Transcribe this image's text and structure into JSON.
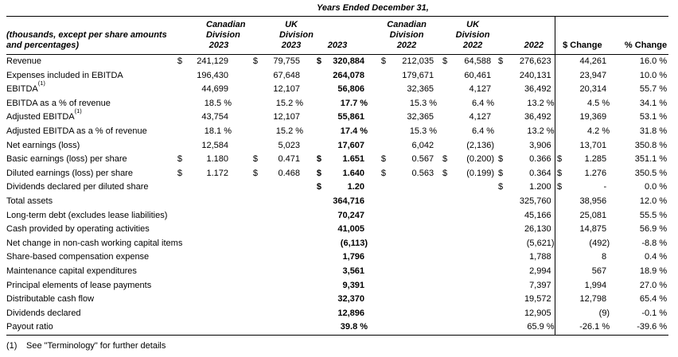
{
  "title": "Years Ended December 31,",
  "table": {
    "left_header": "(thousands, except per share amounts\nand percentages)",
    "columns": [
      "Canadian\nDivision\n2023",
      "UK\nDivision\n2023",
      "2023",
      "Canadian\nDivision\n2022",
      "UK\nDivision\n2022",
      "2022",
      "$ Change",
      "% Change"
    ],
    "rows": [
      {
        "label": "Revenue",
        "cells": [
          "$",
          "241,129",
          "$",
          "79,755",
          "$",
          "320,884",
          "$",
          "212,035",
          "$",
          "64,588",
          "$",
          "276,623",
          "",
          "44,261",
          "16.0 %"
        ]
      },
      {
        "label": "Expenses included in EBITDA",
        "cells": [
          "",
          "196,430",
          "",
          "67,648",
          "",
          "264,078",
          "",
          "179,671",
          "",
          "60,461",
          "",
          "240,131",
          "",
          "23,947",
          "10.0 %"
        ]
      },
      {
        "label": "EBITDA",
        "sup": "(1)",
        "cells": [
          "",
          "44,699",
          "",
          "12,107",
          "",
          "56,806",
          "",
          "32,365",
          "",
          "4,127",
          "",
          "36,492",
          "",
          "20,314",
          "55.7 %"
        ]
      },
      {
        "label": "EBITDA as a % of revenue",
        "cells": [
          "",
          "18.5 %",
          "",
          "15.2 %",
          "",
          "17.7 %",
          "",
          "15.3 %",
          "",
          "6.4 %",
          "",
          "13.2 %",
          "",
          "4.5 %",
          "34.1 %"
        ]
      },
      {
        "label": "Adjusted EBITDA",
        "sup": "(1)",
        "cells": [
          "",
          "43,754",
          "",
          "12,107",
          "",
          "55,861",
          "",
          "32,365",
          "",
          "4,127",
          "",
          "36,492",
          "",
          "19,369",
          "53.1 %"
        ]
      },
      {
        "label": "Adjusted EBITDA as a % of revenue",
        "cells": [
          "",
          "18.1 %",
          "",
          "15.2 %",
          "",
          "17.4 %",
          "",
          "15.3 %",
          "",
          "6.4 %",
          "",
          "13.2 %",
          "",
          "4.2 %",
          "31.8 %"
        ]
      },
      {
        "label": "Net earnings (loss)",
        "cells": [
          "",
          "12,584",
          "",
          "5,023",
          "",
          "17,607",
          "",
          "6,042",
          "",
          "(2,136)",
          "",
          "3,906",
          "",
          "13,701",
          "350.8 %"
        ]
      },
      {
        "label": "Basic earnings (loss) per share",
        "cells": [
          "$",
          "1.180",
          "$",
          "0.471",
          "$",
          "1.651",
          "$",
          "0.567",
          "$",
          "(0.200)",
          "$",
          "0.366",
          "$",
          "1.285",
          "351.1 %"
        ]
      },
      {
        "label": "Diluted earnings (loss) per share",
        "cells": [
          "$",
          "1.172",
          "$",
          "0.468",
          "$",
          "1.640",
          "$",
          "0.563",
          "$",
          "(0.199)",
          "$",
          "0.364",
          "$",
          "1.276",
          "350.5 %"
        ]
      },
      {
        "label": "Dividends declared per diluted share",
        "cells": [
          "",
          "",
          "",
          "",
          "$",
          "1.20",
          "",
          "",
          "",
          "",
          "$",
          "1.200",
          "$",
          "-",
          "0.0 %"
        ]
      },
      {
        "label": "Total assets",
        "cells": [
          "",
          "",
          "",
          "",
          "",
          "364,716",
          "",
          "",
          "",
          "",
          "",
          "325,760",
          "",
          "38,956",
          "12.0 %"
        ]
      },
      {
        "label": "Long-term debt (excludes lease liabilities)",
        "cells": [
          "",
          "",
          "",
          "",
          "",
          "70,247",
          "",
          "",
          "",
          "",
          "",
          "45,166",
          "",
          "25,081",
          "55.5 %"
        ]
      },
      {
        "label": "Cash provided by  operating activities",
        "cells": [
          "",
          "",
          "",
          "",
          "",
          "41,005",
          "",
          "",
          "",
          "",
          "",
          "26,130",
          "",
          "14,875",
          "56.9 %"
        ]
      },
      {
        "label": "Net change in non-cash working capital items",
        "cells": [
          "",
          "",
          "",
          "",
          "",
          "(6,113)",
          "",
          "",
          "",
          "",
          "",
          "(5,621)",
          "",
          "(492)",
          "-8.8 %"
        ]
      },
      {
        "label": "Share-based compensation expense",
        "cells": [
          "",
          "",
          "",
          "",
          "",
          "1,796",
          "",
          "",
          "",
          "",
          "",
          "1,788",
          "",
          "8",
          "0.4 %"
        ]
      },
      {
        "label": "Maintenance capital expenditures",
        "cells": [
          "",
          "",
          "",
          "",
          "",
          "3,561",
          "",
          "",
          "",
          "",
          "",
          "2,994",
          "",
          "567",
          "18.9 %"
        ]
      },
      {
        "label": "Principal elements of lease payments",
        "cells": [
          "",
          "",
          "",
          "",
          "",
          "9,391",
          "",
          "",
          "",
          "",
          "",
          "7,397",
          "",
          "1,994",
          "27.0 %"
        ]
      },
      {
        "label": "Distributable cash flow",
        "cells": [
          "",
          "",
          "",
          "",
          "",
          "32,370",
          "",
          "",
          "",
          "",
          "",
          "19,572",
          "",
          "12,798",
          "65.4 %"
        ]
      },
      {
        "label": "Dividends declared",
        "cells": [
          "",
          "",
          "",
          "",
          "",
          "12,896",
          "",
          "",
          "",
          "",
          "",
          "12,905",
          "",
          "(9)",
          "-0.1 %"
        ]
      },
      {
        "label": "Payout ratio",
        "cells": [
          "",
          "",
          "",
          "",
          "",
          "39.8 %",
          "",
          "",
          "",
          "",
          "",
          "65.9 %",
          "",
          "-26.1 %",
          "-39.6 %"
        ]
      }
    ]
  },
  "footnote": {
    "marker": "(1)",
    "text": "See \"Terminology\" for further details"
  }
}
